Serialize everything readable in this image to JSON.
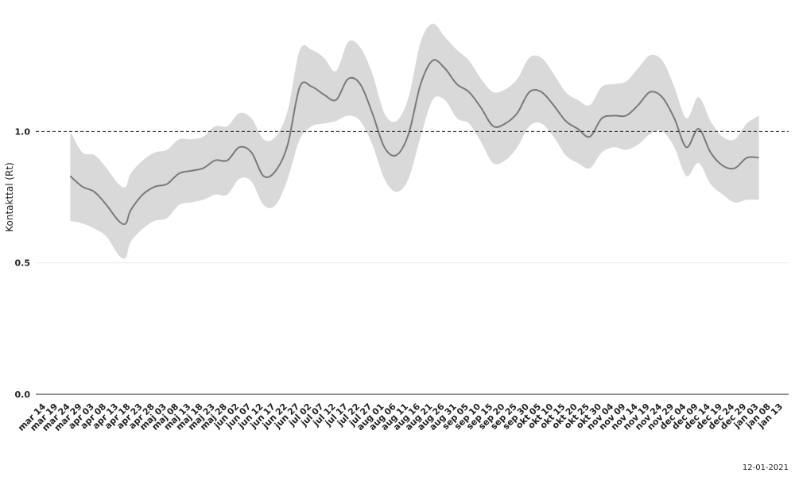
{
  "chart_data": {
    "type": "area",
    "ylabel": "Kontakttal (Rt)",
    "ylim": [
      0,
      1.5
    ],
    "yticks": [
      0.0,
      0.5,
      1.0
    ],
    "ytick_labels": [
      "0.0",
      "0.5",
      "1.0"
    ],
    "reference_line": 1.0,
    "x_start": "2020-03-14",
    "x_end": "2021-01-13",
    "xtick_labels": [
      "mar 14",
      "mar 19",
      "mar 24",
      "mar 29",
      "apr 03",
      "apr 08",
      "apr 13",
      "apr 18",
      "apr 23",
      "apr 28",
      "maj 03",
      "maj 08",
      "maj 13",
      "maj 18",
      "maj 23",
      "maj 28",
      "jun 02",
      "jun 07",
      "jun 12",
      "jun 17",
      "jun 22",
      "jun 27",
      "jul 02",
      "jul 07",
      "jul 12",
      "jul 17",
      "jul 22",
      "jul 27",
      "aug 01",
      "aug 06",
      "aug 11",
      "aug 16",
      "aug 21",
      "aug 26",
      "aug 31",
      "sep 05",
      "sep 10",
      "sep 15",
      "sep 20",
      "sep 25",
      "sep 30",
      "okt 05",
      "okt 10",
      "okt 15",
      "okt 20",
      "okt 25",
      "okt 30",
      "nov 04",
      "nov 09",
      "nov 14",
      "nov 19",
      "nov 24",
      "nov 29",
      "dec 04",
      "dec 09",
      "dec 14",
      "dec 19",
      "dec 24",
      "dec 29",
      "jan 03",
      "jan 08",
      "jan 13"
    ],
    "series": [
      {
        "dates": [
          "2020-03-24",
          "2020-03-29",
          "2020-04-03",
          "2020-04-08",
          "2020-04-13",
          "2020-04-16",
          "2020-04-18",
          "2020-04-23",
          "2020-04-28",
          "2020-05-03",
          "2020-05-08",
          "2020-05-13",
          "2020-05-18",
          "2020-05-23",
          "2020-05-28",
          "2020-06-02",
          "2020-06-07",
          "2020-06-12",
          "2020-06-17",
          "2020-06-22",
          "2020-06-27",
          "2020-07-02",
          "2020-07-07",
          "2020-07-12",
          "2020-07-17",
          "2020-07-22",
          "2020-07-27",
          "2020-08-01",
          "2020-08-06",
          "2020-08-11",
          "2020-08-16",
          "2020-08-21",
          "2020-08-26",
          "2020-08-31",
          "2020-09-05",
          "2020-09-10",
          "2020-09-15",
          "2020-09-20",
          "2020-09-25",
          "2020-09-30",
          "2020-10-05",
          "2020-10-10",
          "2020-10-15",
          "2020-10-20",
          "2020-10-25",
          "2020-10-30",
          "2020-11-04",
          "2020-11-09",
          "2020-11-14",
          "2020-11-19",
          "2020-11-24",
          "2020-11-29",
          "2020-12-04",
          "2020-12-09",
          "2020-12-14",
          "2020-12-19",
          "2020-12-24",
          "2020-12-29",
          "2021-01-03"
        ],
        "values": [
          0.83,
          0.79,
          0.77,
          0.72,
          0.66,
          0.65,
          0.7,
          0.76,
          0.79,
          0.8,
          0.84,
          0.85,
          0.86,
          0.89,
          0.89,
          0.94,
          0.92,
          0.83,
          0.85,
          0.95,
          1.17,
          1.17,
          1.14,
          1.12,
          1.2,
          1.18,
          1.07,
          0.94,
          0.91,
          0.99,
          1.18,
          1.27,
          1.24,
          1.18,
          1.15,
          1.09,
          1.02,
          1.03,
          1.07,
          1.15,
          1.15,
          1.1,
          1.04,
          1.01,
          0.98,
          1.05,
          1.06,
          1.06,
          1.1,
          1.15,
          1.13,
          1.05,
          0.94,
          1.01,
          0.92,
          0.87,
          0.86,
          0.9,
          0.9
        ],
        "lower": [
          0.66,
          0.65,
          0.63,
          0.6,
          0.53,
          0.52,
          0.58,
          0.63,
          0.66,
          0.67,
          0.72,
          0.73,
          0.74,
          0.76,
          0.76,
          0.82,
          0.81,
          0.72,
          0.72,
          0.82,
          0.97,
          1.02,
          1.03,
          1.04,
          1.06,
          1.04,
          0.95,
          0.82,
          0.77,
          0.82,
          0.98,
          1.12,
          1.12,
          1.05,
          1.03,
          0.96,
          0.88,
          0.89,
          0.94,
          1.02,
          1.03,
          0.98,
          0.91,
          0.88,
          0.86,
          0.92,
          0.94,
          0.93,
          0.95,
          0.99,
          1.0,
          0.94,
          0.83,
          0.88,
          0.8,
          0.76,
          0.73,
          0.74,
          0.74
        ],
        "upper": [
          1.0,
          0.92,
          0.91,
          0.86,
          0.8,
          0.79,
          0.84,
          0.89,
          0.92,
          0.93,
          0.97,
          0.97,
          0.98,
          1.02,
          1.02,
          1.07,
          1.05,
          0.97,
          0.98,
          1.08,
          1.31,
          1.31,
          1.28,
          1.23,
          1.34,
          1.32,
          1.22,
          1.07,
          1.04,
          1.13,
          1.34,
          1.41,
          1.36,
          1.31,
          1.27,
          1.2,
          1.15,
          1.16,
          1.2,
          1.28,
          1.28,
          1.22,
          1.15,
          1.12,
          1.1,
          1.17,
          1.18,
          1.19,
          1.24,
          1.29,
          1.27,
          1.17,
          1.05,
          1.13,
          1.04,
          0.98,
          0.97,
          1.03,
          1.06
        ]
      }
    ],
    "grid": false,
    "legend": "none",
    "colors": {
      "line": "#7a7a7a",
      "band": "#d9d9d9",
      "reference": "#222222",
      "axis": "#222222"
    }
  },
  "footer": {
    "date_stamp": "12-01-2021"
  }
}
